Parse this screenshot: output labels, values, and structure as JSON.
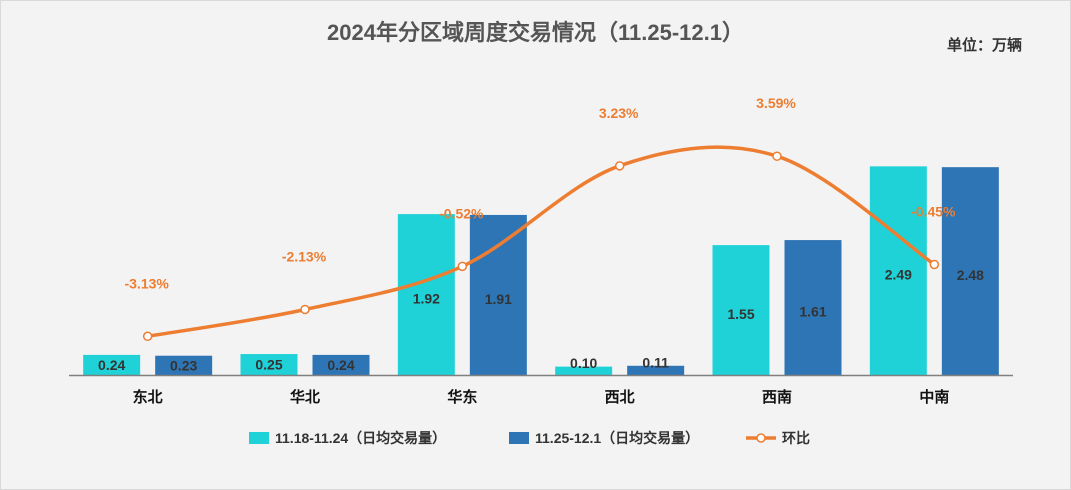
{
  "title": "2024年分区域周度交易情况（11.25-12.1）",
  "unit": "单位：万辆",
  "colors": {
    "series1": "#1fd2d8",
    "series2": "#2e75b6",
    "line": "#ed7d31"
  },
  "chart_data": {
    "type": "bar",
    "title": "2024年分区域周度交易情况（11.25-12.1）",
    "unit": "单位：万辆",
    "categories": [
      "东北",
      "华北",
      "华东",
      "西北",
      "西南",
      "中南"
    ],
    "series": [
      {
        "name": "11.18-11.24（日均交易量）",
        "type": "bar",
        "values": [
          0.24,
          0.25,
          1.92,
          0.1,
          1.55,
          2.49
        ],
        "labels": [
          "0.24",
          "0.25",
          "1.92",
          "0.10",
          "1.55",
          "2.49"
        ]
      },
      {
        "name": "11.25-12.1（日均交易量）",
        "type": "bar",
        "values": [
          0.23,
          0.24,
          1.91,
          0.11,
          1.61,
          2.48
        ],
        "labels": [
          "0.23",
          "0.24",
          "1.91",
          "0.11",
          "1.61",
          "2.48"
        ]
      },
      {
        "name": "环比",
        "type": "line",
        "smooth": true,
        "values": [
          -3.13,
          -2.13,
          -0.52,
          3.23,
          3.59,
          -0.45
        ],
        "labels": [
          "-3.13%",
          "-2.13%",
          "-0.52%",
          "3.23%",
          "3.59%",
          "-0.45%"
        ]
      }
    ],
    "ylim": [
      0,
      2.6
    ],
    "y2lim": [
      -4.0,
      4.5
    ],
    "legend": "bottom-center"
  }
}
